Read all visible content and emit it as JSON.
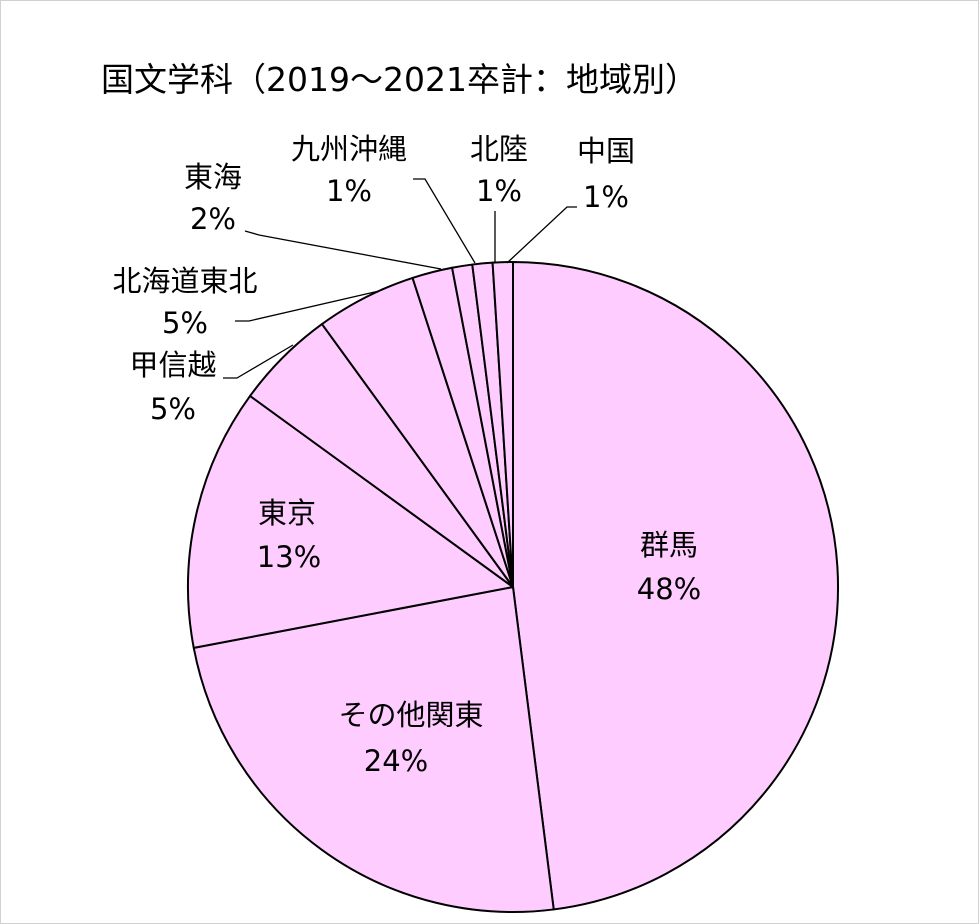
{
  "chart_data": {
    "type": "pie",
    "title": "国文学科（2019～2021卒計：地域別）",
    "slice_color": "#ffccff",
    "stroke_color": "#000000",
    "slices": [
      {
        "name": "群馬",
        "value": 48,
        "label": "48%"
      },
      {
        "name": "その他関東",
        "value": 24,
        "label": "24%"
      },
      {
        "name": "東京",
        "value": 13,
        "label": "13%"
      },
      {
        "name": "甲信越",
        "value": 5,
        "label": "5%"
      },
      {
        "name": "北海道東北",
        "value": 5,
        "label": "5%"
      },
      {
        "name": "東海",
        "value": 2,
        "label": "2%"
      },
      {
        "name": "九州沖縄",
        "value": 1,
        "label": "1%"
      },
      {
        "name": "北陸",
        "value": 1,
        "label": "1%"
      },
      {
        "name": "中国",
        "value": 1,
        "label": "1%"
      }
    ]
  }
}
